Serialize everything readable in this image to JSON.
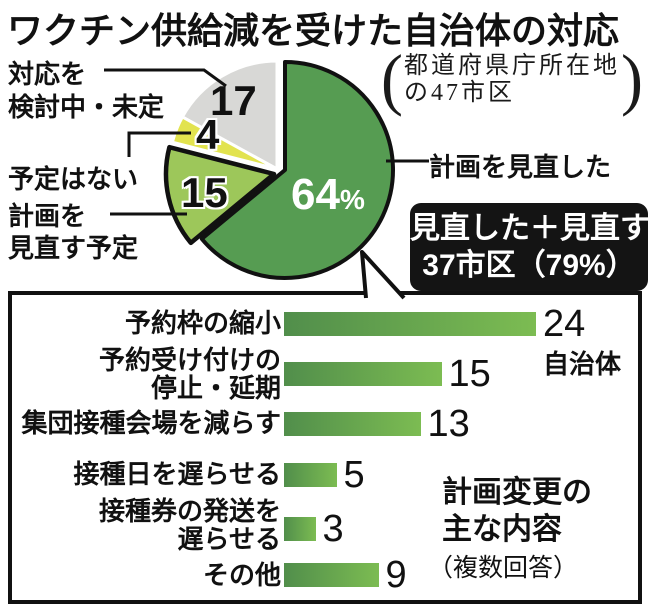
{
  "title": "ワクチン供給減を受けた自治体の対応",
  "note": {
    "lines": [
      "都道府県庁所在地",
      "の47市区"
    ]
  },
  "callout": {
    "line1": "見直した＋見直す",
    "line2": "37市区（79%）"
  },
  "chart_data": [
    {
      "type": "pie",
      "title": "ワクチン供給減を受けた自治体の対応",
      "population_note": "都道府県庁所在地の47市区",
      "unit": "%",
      "start_angle_deg": 0,
      "direction": "clockwise",
      "slices": [
        {
          "label": "計画を見直した",
          "label_lines": [
            "計画を見直した"
          ],
          "value": 64,
          "display": "64",
          "suffix": "%",
          "color": "#569c52"
        },
        {
          "label": "計画を見直す予定",
          "label_lines": [
            "計画を",
            "見直す予定"
          ],
          "value": 15,
          "display": "15",
          "color": "#9dc75a",
          "exploded": true
        },
        {
          "label": "予定はない",
          "label_lines": [
            "予定はない"
          ],
          "value": 4,
          "display": "4",
          "color": "#e2e34f"
        },
        {
          "label": "対応を検討中・未定",
          "label_lines": [
            "対応を",
            "検討中・未定"
          ],
          "value": 17,
          "display": "17",
          "color": "#d8d8d6"
        }
      ],
      "annotation": "見直した＋見直す 37市区（79%）"
    },
    {
      "type": "bar",
      "orientation": "horizontal",
      "title": "計画変更の主な内容",
      "title_lines": [
        "計画変更の",
        "主な内容"
      ],
      "subtitle": "（複数回答）",
      "unit_label": "自治体",
      "categories": [
        "予約枠の縮小",
        "予約受け付けの停止・延期",
        "集団接種会場を減らす",
        "接種日を遅らせる",
        "接種券の発送を遅らせる",
        "その他"
      ],
      "categories_lines": [
        [
          "予約枠の縮小"
        ],
        [
          "予約受け付けの",
          "停止・延期"
        ],
        [
          "集団接種会場を減らす"
        ],
        [
          "接種日を遅らせる"
        ],
        [
          "接種券の発送を",
          "遅らせる"
        ],
        [
          "その他"
        ]
      ],
      "values": [
        24,
        15,
        13,
        5,
        3,
        9
      ],
      "xlim": [
        0,
        24
      ],
      "bar_color_gradient": [
        "#518e4b",
        "#7cbc52"
      ]
    }
  ]
}
